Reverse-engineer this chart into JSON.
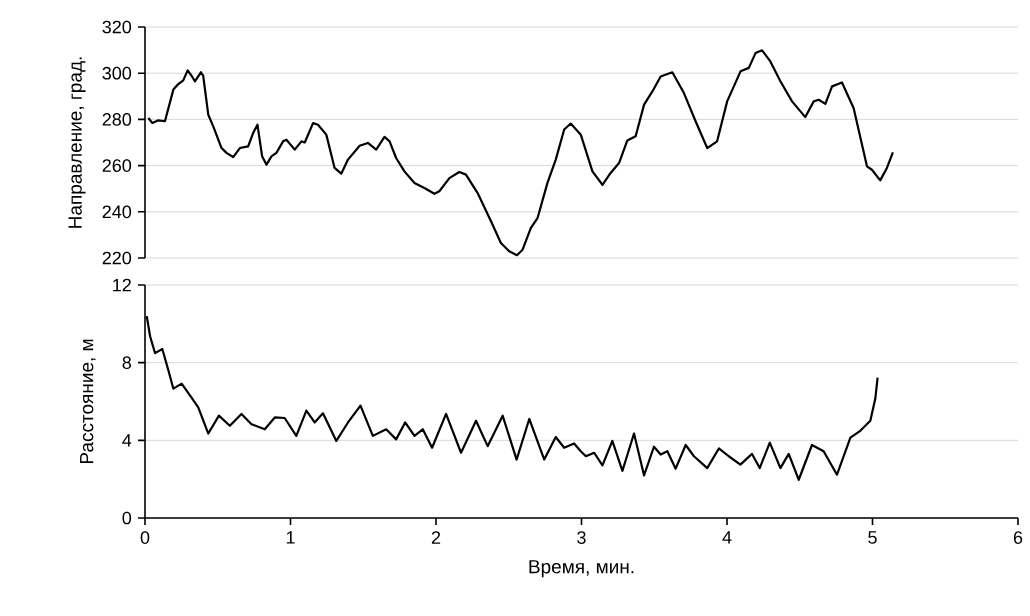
{
  "chart_data": [
    {
      "type": "line",
      "ylabel": "Направление, град.",
      "xlim": [
        0,
        6
      ],
      "xticks": [
        0,
        1,
        2,
        3,
        4,
        5,
        6
      ],
      "ylim": [
        220,
        320
      ],
      "yticks": [
        220,
        240,
        260,
        280,
        300,
        320
      ],
      "grid": "y",
      "tick_labels": "y",
      "x": [
        0.023,
        0.051,
        0.092,
        0.137,
        0.195,
        0.229,
        0.263,
        0.293,
        0.32,
        0.343,
        0.384,
        0.4,
        0.435,
        0.469,
        0.526,
        0.56,
        0.606,
        0.652,
        0.709,
        0.743,
        0.773,
        0.805,
        0.835,
        0.869,
        0.903,
        0.949,
        0.972,
        1.029,
        1.075,
        1.098,
        1.155,
        1.189,
        1.246,
        1.303,
        1.349,
        1.395,
        1.475,
        1.532,
        1.589,
        1.646,
        1.681,
        1.726,
        1.783,
        1.852,
        1.92,
        1.989,
        2.023,
        2.092,
        2.16,
        2.206,
        2.286,
        2.378,
        2.446,
        2.503,
        2.556,
        2.595,
        2.652,
        2.698,
        2.766,
        2.823,
        2.881,
        2.926,
        2.995,
        3.075,
        3.144,
        3.2,
        3.258,
        3.315,
        3.372,
        3.43,
        3.487,
        3.544,
        3.624,
        3.704,
        3.784,
        3.864,
        3.932,
        4.001,
        4.093,
        4.15,
        4.196,
        4.241,
        4.298,
        4.367,
        4.447,
        4.538,
        4.596,
        4.63,
        4.676,
        4.722,
        4.79,
        4.87,
        4.962,
        4.996,
        5.053,
        5.099,
        5.14
      ],
      "series": [
        {
          "color": "#000000",
          "values": [
            280.6,
            278.4,
            279.6,
            279.2,
            292.9,
            295.3,
            296.9,
            301.2,
            298.9,
            296.5,
            300.4,
            298.9,
            282,
            277,
            267.6,
            265.5,
            263.7,
            267.6,
            268.3,
            274.1,
            277.7,
            264,
            260.4,
            264,
            265.5,
            270.5,
            271.2,
            266.9,
            270.5,
            270,
            278.4,
            277.7,
            273.4,
            259,
            256.5,
            262.6,
            268.6,
            269.8,
            266.9,
            272.4,
            270.5,
            263.3,
            257.5,
            252.5,
            250.3,
            247.8,
            248.9,
            254.6,
            257.2,
            256.1,
            248.1,
            235.9,
            226.5,
            222.9,
            221.2,
            223.6,
            233,
            237.3,
            252.5,
            262.6,
            275.6,
            278.2,
            273.4,
            257.5,
            251.7,
            256.8,
            261.1,
            270.9,
            272.7,
            286.4,
            292.1,
            298.6,
            300.4,
            291.4,
            279.2,
            267.6,
            270.5,
            287.8,
            300.8,
            302.3,
            308.7,
            309.9,
            305.1,
            296.5,
            287.8,
            281,
            287.8,
            288.5,
            286.7,
            294.3,
            296,
            284.9,
            259.7,
            258.2,
            253.6,
            259,
            265.7
          ]
        }
      ]
    },
    {
      "type": "line",
      "xlabel": "Время, мин.",
      "ylabel": "Расстояние, м",
      "xlim": [
        0,
        6
      ],
      "xticks": [
        0,
        1,
        2,
        3,
        4,
        5,
        6
      ],
      "ylim": [
        0,
        12
      ],
      "yticks": [
        0,
        4,
        8,
        12
      ],
      "grid": "y",
      "x": [
        0.012,
        0.035,
        0.069,
        0.119,
        0.16,
        0.195,
        0.252,
        0.309,
        0.366,
        0.435,
        0.508,
        0.583,
        0.663,
        0.732,
        0.823,
        0.892,
        0.96,
        1.04,
        1.109,
        1.166,
        1.223,
        1.315,
        1.395,
        1.481,
        1.566,
        1.658,
        1.726,
        1.788,
        1.852,
        1.909,
        1.973,
        2.069,
        2.172,
        2.275,
        2.355,
        2.458,
        2.554,
        2.641,
        2.744,
        2.823,
        2.881,
        2.949,
        2.995,
        3.03,
        3.087,
        3.144,
        3.212,
        3.281,
        3.361,
        3.43,
        3.498,
        3.544,
        3.59,
        3.647,
        3.716,
        3.773,
        3.864,
        3.944,
        4.012,
        4.092,
        4.172,
        4.225,
        4.294,
        4.367,
        4.424,
        4.493,
        4.584,
        4.664,
        4.756,
        4.848,
        4.916,
        4.985,
        5.019,
        5.035
      ],
      "series": [
        {
          "color": "#000000",
          "values": [
            10.4,
            9.36,
            8.49,
            8.7,
            7.62,
            6.66,
            6.92,
            6.31,
            5.7,
            4.35,
            5.27,
            4.75,
            5.36,
            4.83,
            4.57,
            5.18,
            5.15,
            4.23,
            5.53,
            4.92,
            5.39,
            3.97,
            4.92,
            5.79,
            4.23,
            4.57,
            4.05,
            4.92,
            4.23,
            4.57,
            3.62,
            5.36,
            3.36,
            5.01,
            3.7,
            5.27,
            3.01,
            5.1,
            3.01,
            4.17,
            3.62,
            3.84,
            3.44,
            3.18,
            3.36,
            2.71,
            3.97,
            2.43,
            4.35,
            2.19,
            3.67,
            3.27,
            3.44,
            2.54,
            3.76,
            3.18,
            2.57,
            3.58,
            3.18,
            2.75,
            3.3,
            2.57,
            3.88,
            2.57,
            3.3,
            1.97,
            3.76,
            3.44,
            2.23,
            4.14,
            4.49,
            5.01,
            6.14,
            7.23
          ]
        }
      ]
    }
  ]
}
